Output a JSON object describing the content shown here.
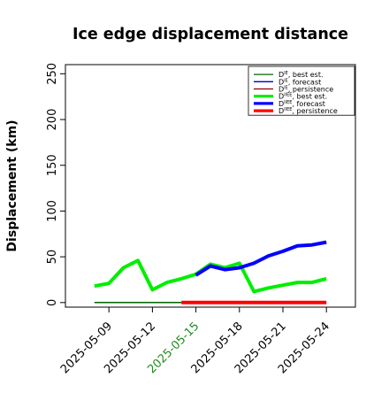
{
  "chart_data": {
    "type": "line",
    "title": "Ice edge displacement distance",
    "ylabel": "Displacement (km)",
    "xlabel": "",
    "xlim": [
      "2025-05-06",
      "2025-05-26"
    ],
    "ylim": [
      -5,
      260
    ],
    "yticks": [
      0,
      50,
      100,
      150,
      200,
      250
    ],
    "xticks": [
      {
        "date": "2025-05-09",
        "label": "2025-05-09",
        "color": "#000000"
      },
      {
        "date": "2025-05-12",
        "label": "2025-05-12",
        "color": "#000000"
      },
      {
        "date": "2025-05-15",
        "label": "2025-05-15",
        "color": "#228b22"
      },
      {
        "date": "2025-05-18",
        "label": "2025-05-18",
        "color": "#000000"
      },
      {
        "date": "2025-05-21",
        "label": "2025-05-21",
        "color": "#000000"
      },
      {
        "date": "2025-05-24",
        "label": "2025-05-24",
        "color": "#000000"
      }
    ],
    "legend_position": "top-right",
    "grid": false,
    "series": [
      {
        "name": "DIE, best est.",
        "label_main": "D",
        "label_sup": "IE",
        "label_rest": ", best est.",
        "color": "#006400",
        "width": 1.5,
        "x": [
          "2025-05-08",
          "2025-05-14"
        ],
        "y": [
          0,
          0
        ]
      },
      {
        "name": "DIE, forecast",
        "label_main": "D",
        "label_sup": "IE",
        "label_rest": ", forecast",
        "color": "#0000cd",
        "width": 1.5,
        "x": [],
        "y": []
      },
      {
        "name": "DIE, persistence",
        "label_main": "D",
        "label_sup": "IE",
        "label_rest": ", persistence",
        "color": "#8b0000",
        "width": 1.5,
        "x": [],
        "y": []
      },
      {
        "name": "DIIEE, best est.",
        "label_main": "D",
        "label_sup": "IIEE",
        "label_rest": ", best est.",
        "color": "#00ee00",
        "width": 4,
        "x": [
          "2025-05-08",
          "2025-05-09",
          "2025-05-10",
          "2025-05-11",
          "2025-05-12",
          "2025-05-13",
          "2025-05-14",
          "2025-05-15",
          "2025-05-16",
          "2025-05-17",
          "2025-05-18",
          "2025-05-19",
          "2025-05-20",
          "2025-05-21",
          "2025-05-22",
          "2025-05-23",
          "2025-05-24"
        ],
        "y": [
          18,
          21,
          38,
          46,
          14,
          22,
          26,
          31,
          42,
          38,
          43,
          12,
          16,
          19,
          22,
          22,
          26
        ]
      },
      {
        "name": "DIIEE, forecast",
        "label_main": "D",
        "label_sup": "IIEE",
        "label_rest": ", forecast",
        "color": "#0000ff",
        "width": 4,
        "x": [
          "2025-05-15",
          "2025-05-16",
          "2025-05-17",
          "2025-05-18",
          "2025-05-19",
          "2025-05-20",
          "2025-05-21",
          "2025-05-22",
          "2025-05-23",
          "2025-05-24"
        ],
        "y": [
          30,
          40,
          36,
          38,
          43,
          51,
          56,
          62,
          63,
          66
        ]
      },
      {
        "name": "DIIEE, persistence",
        "label_main": "D",
        "label_sup": "IIEE",
        "label_rest": ", persistence",
        "color": "#ff0000",
        "width": 4,
        "x": [
          "2025-05-14",
          "2025-05-24"
        ],
        "y": [
          0,
          0
        ]
      }
    ]
  }
}
